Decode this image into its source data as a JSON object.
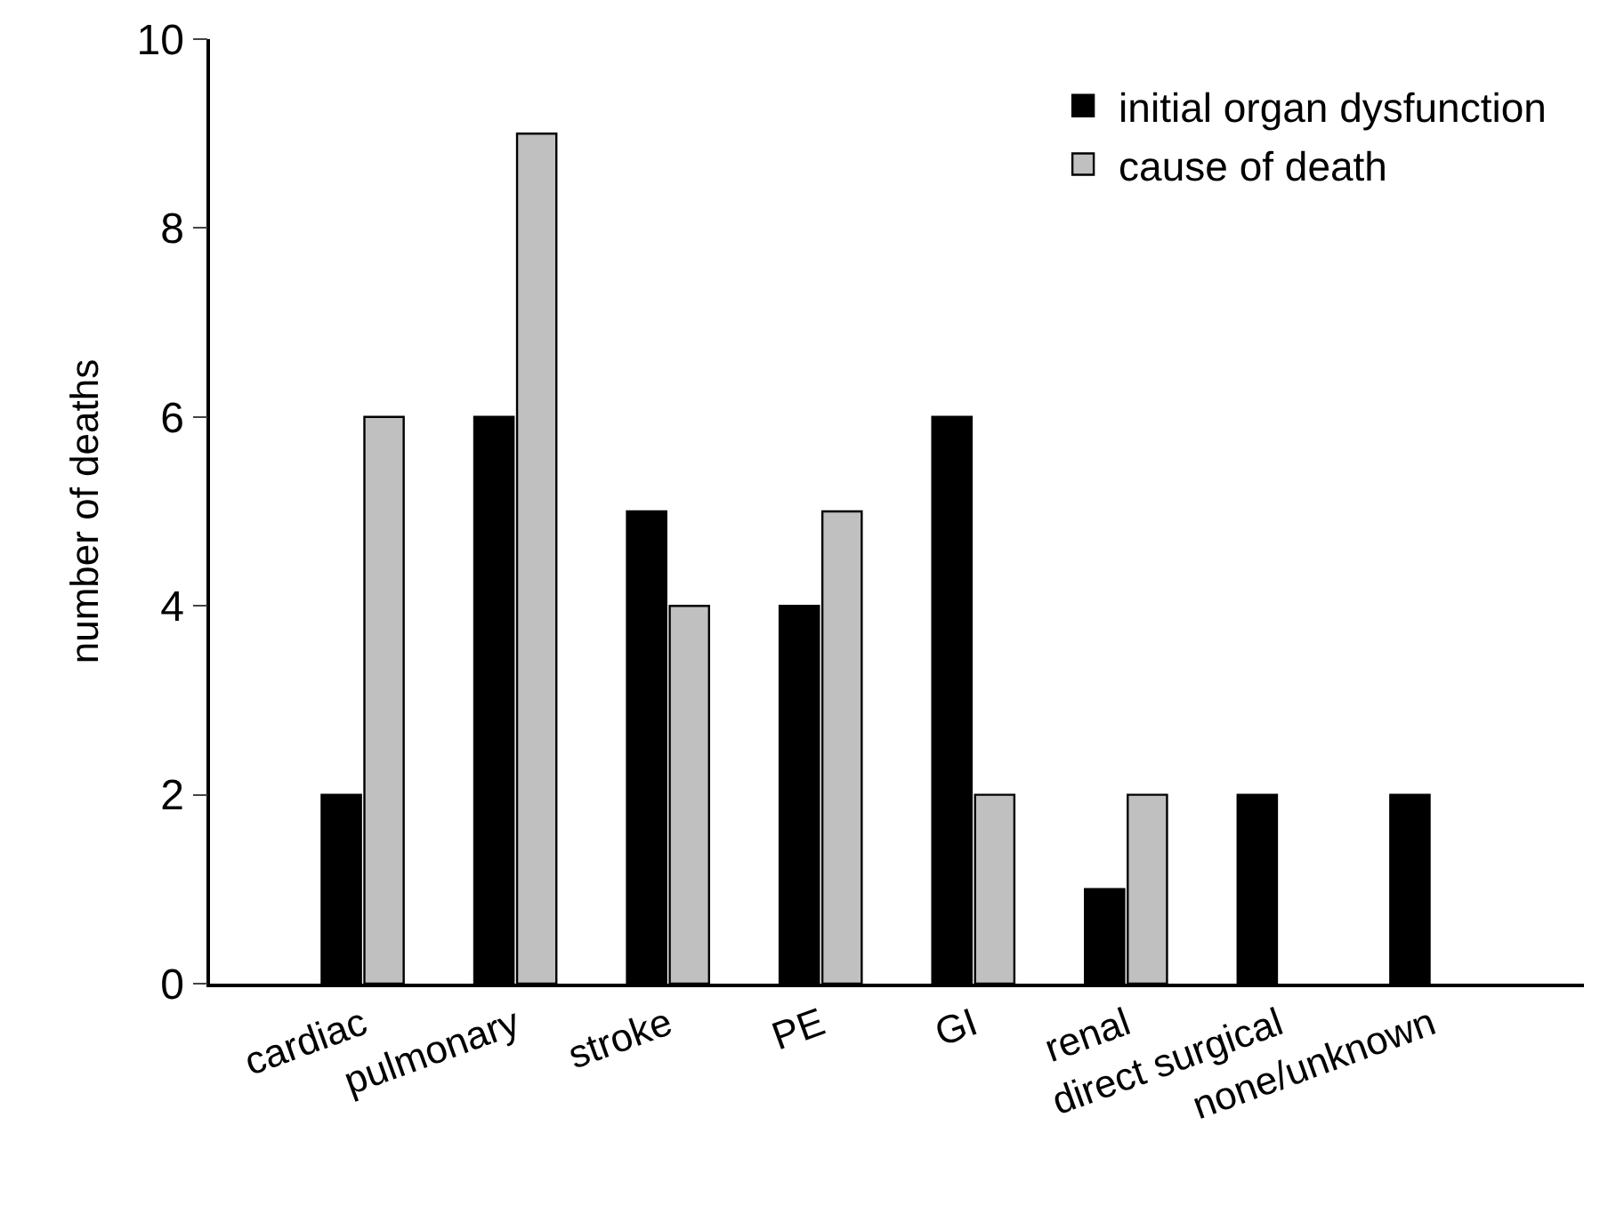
{
  "chart_data": {
    "type": "bar",
    "ylabel": "number of deaths",
    "categories": [
      "cardiac",
      "pulmonary",
      "stroke",
      "PE",
      "GI",
      "renal",
      "direct surgical",
      "none/unknown"
    ],
    "series": [
      {
        "name": "initial organ dysfunction",
        "color": "#000000",
        "values": [
          2,
          6,
          5,
          4,
          6,
          1,
          2,
          2
        ]
      },
      {
        "name": "cause of death",
        "color": "#c0c0c0",
        "values": [
          6,
          9,
          4,
          5,
          2,
          2,
          null,
          null
        ]
      }
    ],
    "ylim": [
      0,
      10
    ],
    "yticks": [
      0,
      2,
      4,
      6,
      8,
      10
    ],
    "legend": "top right"
  }
}
